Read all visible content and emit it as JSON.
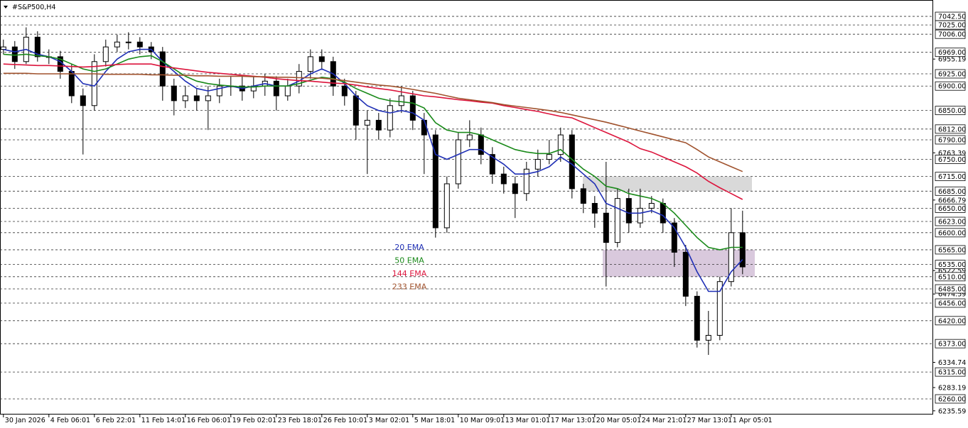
{
  "chart_data": {
    "type": "candlestick",
    "title": "#S&P500,H4",
    "xlim": [
      -0.3,
      81.7
    ],
    "ylim": [
      6229.5,
      7076
    ],
    "xticks": [
      {
        "value": 0,
        "label": "30 Jan 2026"
      },
      {
        "value": 4,
        "label": "4 Feb 06:01"
      },
      {
        "value": 8,
        "label": "6 Feb 22:01"
      },
      {
        "value": 12,
        "label": "11 Feb 14:01"
      },
      {
        "value": 16,
        "label": "16 Feb 06:01"
      },
      {
        "value": 20,
        "label": "19 Feb 02:01"
      },
      {
        "value": 24,
        "label": "23 Feb 18:01"
      },
      {
        "value": 28,
        "label": "26 Feb 10:01"
      },
      {
        "value": 32,
        "label": "3 Mar 02:01"
      },
      {
        "value": 36,
        "label": "5 Mar 18:01"
      },
      {
        "value": 40,
        "label": "10 Mar 09:01"
      },
      {
        "value": 44,
        "label": "13 Mar 01:01"
      },
      {
        "value": 48,
        "label": "17 Mar 13:01"
      },
      {
        "value": 52,
        "label": "20 Mar 05:01"
      },
      {
        "value": 56,
        "label": "24 Mar 21:01"
      },
      {
        "value": 60,
        "label": "27 Mar 13:01"
      },
      {
        "value": 64,
        "label": "1 Apr 05:01"
      }
    ],
    "levels": [
      {
        "value": 7042.5,
        "label": "7042.50"
      },
      {
        "value": 7025,
        "label": "7025.00"
      },
      {
        "value": 7006,
        "label": "7006.00"
      },
      {
        "value": 6969,
        "label": "6969.00"
      },
      {
        "value": 6925,
        "label": "6925.00"
      },
      {
        "value": 6900,
        "label": "6900.00"
      },
      {
        "value": 6850,
        "label": "6850.00"
      },
      {
        "value": 6812,
        "label": "6812.00"
      },
      {
        "value": 6790,
        "label": "6790.00"
      },
      {
        "value": 6750,
        "label": "6750.00"
      },
      {
        "value": 6715,
        "label": "6715.00"
      },
      {
        "value": 6685,
        "label": "6685.00"
      },
      {
        "value": 6650,
        "label": "6650.00"
      },
      {
        "value": 6623,
        "label": "6623.00"
      },
      {
        "value": 6600,
        "label": "6600.00"
      },
      {
        "value": 6565,
        "label": "6565.00"
      },
      {
        "value": 6535,
        "label": "6535.00"
      },
      {
        "value": 6510,
        "label": "6510.00"
      },
      {
        "value": 6485,
        "label": "6485.00"
      },
      {
        "value": 6456,
        "label": "6456.00"
      },
      {
        "value": 6420,
        "label": "6420.00"
      },
      {
        "value": 6373,
        "label": "6373.00"
      },
      {
        "value": 6315,
        "label": "6315.00"
      },
      {
        "value": 6260,
        "label": "6260.00"
      }
    ],
    "yticks": [
      {
        "value": 6955.19,
        "label": "6955.19"
      },
      {
        "value": 6763.39,
        "label": "6763.39"
      },
      {
        "value": 6666.79,
        "label": "6666.79"
      },
      {
        "value": 6522.59,
        "label": "6522.59"
      },
      {
        "value": 6474.59,
        "label": "6474.59"
      },
      {
        "value": 6334.74,
        "label": "6334.74"
      },
      {
        "value": 6283.19,
        "label": "6283.19"
      },
      {
        "value": 6235.59,
        "label": "6235.59"
      }
    ],
    "zones": [
      {
        "low": 6685,
        "high": 6715,
        "color": "#d9d9d9"
      },
      {
        "low": 6510,
        "high": 6565,
        "color": "#d9c9dd"
      }
    ],
    "open": [
      6975,
      6980,
      6950,
      7000,
      6960,
      6960,
      6930,
      6880,
      6860,
      6950,
      6980,
      6990,
      6990,
      6980,
      6970,
      6900,
      6870,
      6880,
      6870,
      6880,
      6900,
      6900,
      6890,
      6900,
      6910,
      6880,
      6900,
      6930,
      6960,
      6950,
      6900,
      6880,
      6820,
      6830,
      6810,
      6860,
      6880,
      6830,
      6800,
      6610,
      6700,
      6790,
      6800,
      6760,
      6720,
      6700,
      6680,
      6730,
      6750,
      6760,
      6800,
      6690,
      6660,
      6640,
      6580,
      6670,
      6620,
      6650,
      6660,
      6620,
      6560,
      6470,
      6380,
      6390,
      6500,
      6600
    ],
    "high": [
      6995,
      6992,
      7020,
      7012,
      6975,
      6972,
      6945,
      6895,
      6965,
      6995,
      7005,
      7010,
      7000,
      6990,
      6980,
      6915,
      6900,
      6895,
      6900,
      6915,
      6920,
      6920,
      6920,
      6925,
      6920,
      6915,
      6945,
      6975,
      6975,
      6960,
      6915,
      6890,
      6850,
      6845,
      6875,
      6900,
      6890,
      6845,
      6810,
      6715,
      6805,
      6830,
      6815,
      6775,
      6735,
      6715,
      6745,
      6770,
      6790,
      6815,
      6810,
      6700,
      6675,
      6745,
      6690,
      6690,
      6690,
      6675,
      6670,
      6630,
      6575,
      6480,
      6440,
      6510,
      6650,
      6645
    ],
    "low": [
      6965,
      6935,
      6945,
      6950,
      6945,
      6915,
      6865,
      6760,
      6850,
      6940,
      6970,
      6975,
      6965,
      6955,
      6870,
      6840,
      6855,
      6850,
      6810,
      6865,
      6880,
      6870,
      6875,
      6880,
      6850,
      6870,
      6885,
      6915,
      6935,
      6880,
      6860,
      6790,
      6720,
      6790,
      6795,
      6845,
      6810,
      6720,
      6590,
      6600,
      6690,
      6775,
      6740,
      6700,
      6680,
      6630,
      6665,
      6715,
      6740,
      6745,
      6670,
      6640,
      6610,
      6490,
      6570,
      6600,
      6610,
      6640,
      6600,
      6530,
      6450,
      6365,
      6350,
      6380,
      6490,
      6515
    ],
    "close": [
      6980,
      6950,
      7000,
      6960,
      6960,
      6930,
      6880,
      6860,
      6950,
      6980,
      6990,
      6990,
      6980,
      6970,
      6900,
      6870,
      6880,
      6870,
      6880,
      6900,
      6900,
      6890,
      6900,
      6910,
      6880,
      6900,
      6930,
      6960,
      6950,
      6900,
      6880,
      6820,
      6830,
      6810,
      6860,
      6880,
      6830,
      6800,
      6610,
      6700,
      6790,
      6800,
      6760,
      6720,
      6700,
      6680,
      6730,
      6750,
      6760,
      6800,
      6690,
      6660,
      6640,
      6580,
      6670,
      6620,
      6650,
      6660,
      6620,
      6560,
      6470,
      6380,
      6390,
      6500,
      6600,
      6530
    ],
    "series": [
      {
        "name": "20 EMA",
        "color": "#1f2fb5",
        "values": [
          6975,
          6970,
          6975,
          6965,
          6960,
          6950,
          6930,
          6905,
          6900,
          6930,
          6955,
          6970,
          6975,
          6975,
          6950,
          6930,
          6910,
          6895,
          6890,
          6895,
          6900,
          6895,
          6900,
          6905,
          6900,
          6900,
          6910,
          6925,
          6935,
          6925,
          6905,
          6880,
          6860,
          6850,
          6845,
          6850,
          6845,
          6830,
          6760,
          6750,
          6760,
          6770,
          6770,
          6755,
          6740,
          6720,
          6720,
          6725,
          6735,
          6755,
          6740,
          6720,
          6700,
          6660,
          6650,
          6640,
          6640,
          6645,
          6635,
          6610,
          6570,
          6520,
          6480,
          6480,
          6520,
          6545
        ]
      },
      {
        "name": "50 EMA",
        "color": "#1a8a1a",
        "values": [
          6965,
          6963,
          6965,
          6962,
          6960,
          6955,
          6945,
          6935,
          6930,
          6935,
          6945,
          6955,
          6960,
          6962,
          6950,
          6935,
          6920,
          6910,
          6905,
          6902,
          6900,
          6898,
          6898,
          6900,
          6900,
          6900,
          6905,
          6912,
          6918,
          6915,
          6908,
          6895,
          6885,
          6875,
          6870,
          6868,
          6865,
          6855,
          6825,
          6810,
          6805,
          6805,
          6800,
          6790,
          6780,
          6770,
          6765,
          6762,
          6762,
          6770,
          6750,
          6730,
          6715,
          6695,
          6690,
          6680,
          6675,
          6670,
          6660,
          6640,
          6615,
          6590,
          6570,
          6565,
          6570,
          6570
        ]
      },
      {
        "name": "144 EMA",
        "color": "#dc143c",
        "values": [
          6945,
          6944,
          6943,
          6942,
          6942,
          6941,
          6940,
          6939,
          6940,
          6942,
          6944,
          6945,
          6945,
          6945,
          6940,
          6937,
          6934,
          6931,
          6928,
          6926,
          6924,
          6922,
          6920,
          6918,
          6915,
          6913,
          6911,
          6910,
          6908,
          6906,
          6905,
          6902,
          6898,
          6895,
          6892,
          6888,
          6884,
          6880,
          6878,
          6875,
          6872,
          6870,
          6867,
          6865,
          6860,
          6856,
          6852,
          6848,
          6843,
          6838,
          6835,
          6825,
          6815,
          6805,
          6795,
          6785,
          6772,
          6765,
          6755,
          6745,
          6735,
          6722,
          6705,
          6692,
          6680,
          6668
        ]
      },
      {
        "name": "233 EMA",
        "color": "#a0522d",
        "values": [
          6926,
          6926,
          6926,
          6925,
          6925,
          6925,
          6925,
          6925,
          6925,
          6924,
          6924,
          6924,
          6924,
          6923,
          6923,
          6922,
          6922,
          6921,
          6921,
          6920,
          6920,
          6920,
          6919,
          6919,
          6918,
          6918,
          6917,
          6917,
          6916,
          6914,
          6911,
          6908,
          6905,
          6902,
          6900,
          6897,
          6893,
          6889,
          6885,
          6880,
          6875,
          6872,
          6869,
          6866,
          6862,
          6859,
          6856,
          6853,
          6850,
          6846,
          6841,
          6836,
          6831,
          6826,
          6820,
          6814,
          6808,
          6802,
          6796,
          6790,
          6784,
          6770,
          6755,
          6745,
          6735,
          6725
        ]
      }
    ]
  }
}
